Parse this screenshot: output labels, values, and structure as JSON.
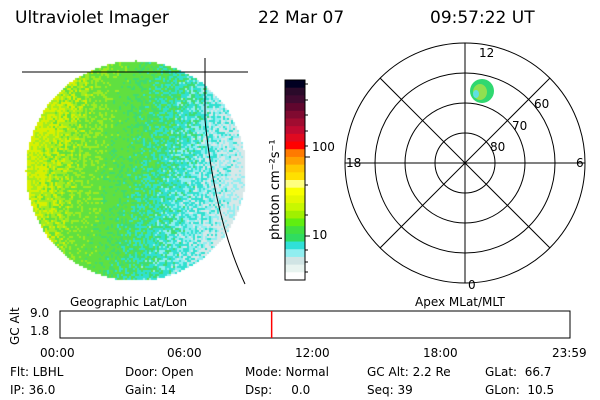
{
  "header": {
    "instrument": "Ultraviolet Imager",
    "date": "22 Mar 07",
    "time": "09:57:22 UT"
  },
  "colorbar": {
    "label": "photon cm⁻²s⁻¹",
    "ticks": [
      "100",
      "10"
    ],
    "colors": [
      "#000022",
      "#2a0a2a",
      "#400a30",
      "#60062e",
      "#800a30",
      "#a00c30",
      "#c00a30",
      "#e00a20",
      "#ff0000",
      "#ff7a00",
      "#ffa000",
      "#ffc800",
      "#ffe000",
      "#ffff80",
      "#f8ff00",
      "#e4f800",
      "#c8f800",
      "#a0f000",
      "#60ee10",
      "#40e040",
      "#30dc60",
      "#30e0d8",
      "#90eef0",
      "#d0e4e4",
      "#e8f4f0",
      "#ffffff"
    ]
  },
  "polar": {
    "mlt_labels": {
      "top": "12",
      "bottom": "0",
      "left": "18",
      "right": "6"
    },
    "lat_labels": [
      "60",
      "70",
      "80"
    ]
  },
  "timeline": {
    "left_label": "Geographic Lat/Lon",
    "right_label": "Apex MLat/MLT",
    "y_title": "GC Alt",
    "y_ticks": [
      "9.0",
      "1.8"
    ],
    "x_ticks": [
      "00:00",
      "06:00",
      "12:00",
      "18:00",
      "23:59"
    ],
    "current_time_hours": 9.96,
    "current_marker_color": "#ff0000"
  },
  "status": {
    "row1": [
      "Flt: LBHL",
      "Door: Open",
      "Mode: Normal",
      "GC Alt: 2.2 Re",
      "GLat:  66.7"
    ],
    "row2": [
      "IP: 36.0",
      "Gain: 14",
      "Dsp:     0.0",
      "Seq: 39",
      "GLon:  10.5"
    ]
  }
}
